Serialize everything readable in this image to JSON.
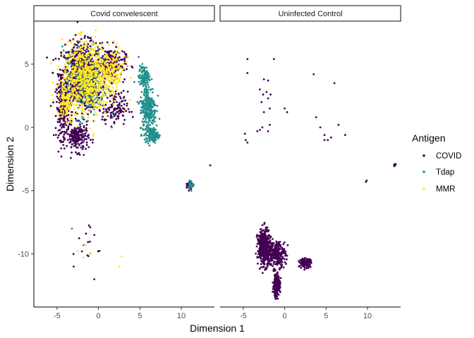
{
  "chart_data": {
    "type": "scatter",
    "xlabel": "Dimension 1",
    "ylabel": "Dimension 2",
    "xlim": [
      -7.8,
      14.0
    ],
    "ylim": [
      -14.2,
      8.4
    ],
    "x_ticks": [
      -5,
      0,
      5,
      10
    ],
    "y_ticks": [
      5,
      0,
      -5,
      -10
    ],
    "legend": {
      "title": "Antigen",
      "position": "right",
      "items": [
        {
          "label": "COVID",
          "color": "#440154"
        },
        {
          "label": "Tdap",
          "color": "#21908C"
        },
        {
          "label": "MMR",
          "color": "#FDE725"
        }
      ]
    },
    "panels": [
      {
        "label": "Covid convelescent",
        "series": [
          {
            "name": "COVID",
            "color": "#440154",
            "clusters": [
              [
                -2.0,
                4.0,
                2.2,
                2.4,
                900
              ],
              [
                -4.3,
                1.5,
                0.7,
                2.2,
                220
              ],
              [
                -2.5,
                -0.8,
                1.2,
                1.0,
                200
              ],
              [
                1.5,
                5.0,
                1.6,
                1.2,
                200
              ],
              [
                2.0,
                1.5,
                1.4,
                1.2,
                120
              ],
              [
                11.0,
                -4.6,
                0.4,
                0.3,
                30
              ],
              [
                -1.5,
                -9.5,
                1.5,
                1.5,
                12
              ]
            ],
            "points": [
              [
                13.5,
                -3.0
              ],
              [
                -0.5,
                -12.0
              ],
              [
                -3.0,
                -11.0
              ],
              [
                -1.0,
                -7.9
              ],
              [
                -0.5,
                -8.5
              ]
            ]
          },
          {
            "name": "Tdap",
            "color": "#21908C",
            "clusters": [
              [
                6.0,
                1.5,
                0.9,
                1.8,
                260
              ],
              [
                6.5,
                -0.6,
                0.6,
                0.5,
                140
              ],
              [
                5.5,
                4.0,
                0.6,
                0.8,
                100
              ],
              [
                -1.5,
                3.5,
                2.5,
                2.5,
                260
              ],
              [
                11.2,
                -4.5,
                0.3,
                0.3,
                25
              ]
            ],
            "points": [
              [
                -3.2,
                -8.0
              ],
              [
                -1.8,
                -9.3
              ]
            ]
          },
          {
            "name": "MMR",
            "color": "#FDE725",
            "clusters": [
              [
                -1.5,
                3.8,
                2.6,
                2.6,
                650
              ],
              [
                1.5,
                4.5,
                1.6,
                1.4,
                160
              ],
              [
                -4.0,
                2.0,
                0.6,
                1.6,
                90
              ]
            ],
            "points": [
              [
                -1.5,
                -9.3
              ],
              [
                -2.5,
                -9.8
              ],
              [
                -1.8,
                -10.3
              ],
              [
                2.8,
                -10.2
              ],
              [
                2.5,
                -11.0
              ],
              [
                -1.0,
                -10.0
              ]
            ]
          }
        ]
      },
      {
        "label": "Uninfected Control",
        "series": [
          {
            "name": "COVID",
            "color": "#440154",
            "clusters": [
              [
                -2.5,
                -9.5,
                0.7,
                1.3,
                380
              ],
              [
                -1.0,
                -10.0,
                1.0,
                0.9,
                250
              ],
              [
                -1.0,
                -12.5,
                0.4,
                0.8,
                180
              ],
              [
                2.5,
                -10.7,
                0.6,
                0.3,
                140
              ],
              [
                13.3,
                -3.0,
                0.15,
                0.15,
                8
              ]
            ],
            "points": [
              [
                -4.5,
                5.4
              ],
              [
                -1.3,
                5.4
              ],
              [
                -4.5,
                4.3
              ],
              [
                -2.5,
                3.8
              ],
              [
                -2.0,
                3.7
              ],
              [
                -2.8,
                2.0
              ],
              [
                -2.0,
                2.3
              ],
              [
                -1.8,
                1.5
              ],
              [
                -2.5,
                1.2
              ],
              [
                -3.0,
                3.0
              ],
              [
                -2.2,
                2.8
              ],
              [
                -1.7,
                2.6
              ],
              [
                -2.6,
                2.6
              ],
              [
                0.0,
                1.5
              ],
              [
                0.3,
                1.2
              ],
              [
                3.5,
                4.2
              ],
              [
                6.0,
                3.5
              ],
              [
                3.8,
                0.8
              ],
              [
                4.3,
                0.0
              ],
              [
                4.8,
                -0.6
              ],
              [
                5.2,
                -1.0
              ],
              [
                5.6,
                -0.8
              ],
              [
                6.5,
                0.2
              ],
              [
                7.3,
                -0.6
              ],
              [
                4.8,
                -1.0
              ],
              [
                -4.8,
                -0.5
              ],
              [
                -4.7,
                -1.0
              ],
              [
                -4.5,
                -1.2
              ],
              [
                -2.7,
                0.0
              ],
              [
                -3.3,
                -0.3
              ],
              [
                -2.0,
                -0.3
              ],
              [
                -1.8,
                0.2
              ],
              [
                -3.0,
                -0.2
              ],
              [
                9.8,
                -4.3
              ],
              [
                9.9,
                -4.2
              ]
            ]
          }
        ]
      }
    ]
  }
}
